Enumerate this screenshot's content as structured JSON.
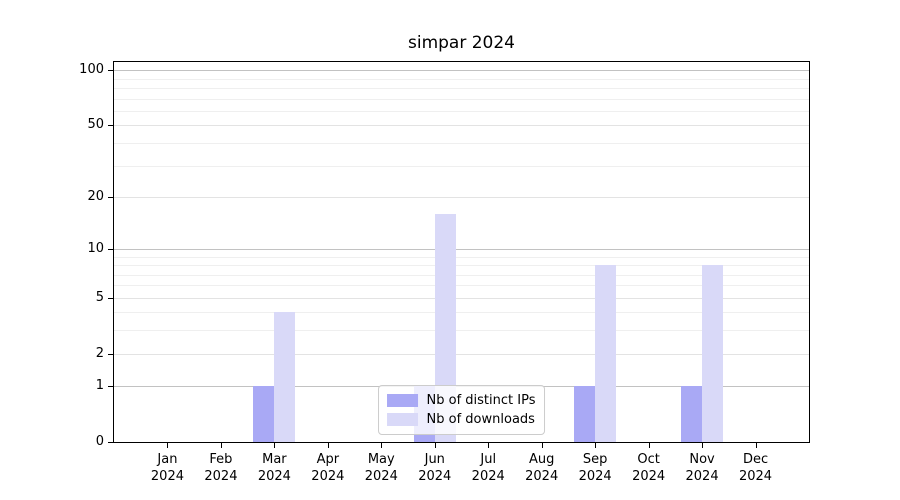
{
  "title": "simpar 2024",
  "legend": {
    "items": [
      {
        "label": "Nb of distinct IPs",
        "color": "#a9a9f5"
      },
      {
        "label": "Nb of downloads",
        "color": "#d9d9f8"
      }
    ]
  },
  "chart_data": {
    "type": "bar",
    "title": "simpar 2024",
    "categories": [
      "Jan",
      "Feb",
      "Mar",
      "Apr",
      "May",
      "Jun",
      "Jul",
      "Aug",
      "Sep",
      "Oct",
      "Nov",
      "Dec"
    ],
    "x_tick_year": "2024",
    "series": [
      {
        "name": "Nb of distinct IPs",
        "color": "#a9a9f5",
        "values": [
          0,
          0,
          1,
          0,
          0,
          1,
          0,
          0,
          1,
          0,
          1,
          0
        ]
      },
      {
        "name": "Nb of downloads",
        "color": "#d9d9f8",
        "values": [
          0,
          0,
          4,
          0,
          0,
          16,
          0,
          0,
          8,
          0,
          8,
          0
        ]
      }
    ],
    "xlabel": "",
    "ylabel": "",
    "y_scale": "log10(1+v)",
    "y_axis_top_value": 110,
    "y_ticks": [
      0,
      1,
      2,
      5,
      10,
      20,
      50,
      100
    ],
    "y_minor_ticks": [
      3,
      4,
      6,
      7,
      8,
      9,
      30,
      40,
      60,
      70,
      80,
      90
    ],
    "grid": true,
    "legend_position": "lower center",
    "colors": {
      "decade_gridline": "#c2c2c2",
      "labeled_gridline": "#e3e3e3",
      "minor_gridline": "#efefef",
      "spine": "#000000",
      "background": "#ffffff"
    }
  }
}
